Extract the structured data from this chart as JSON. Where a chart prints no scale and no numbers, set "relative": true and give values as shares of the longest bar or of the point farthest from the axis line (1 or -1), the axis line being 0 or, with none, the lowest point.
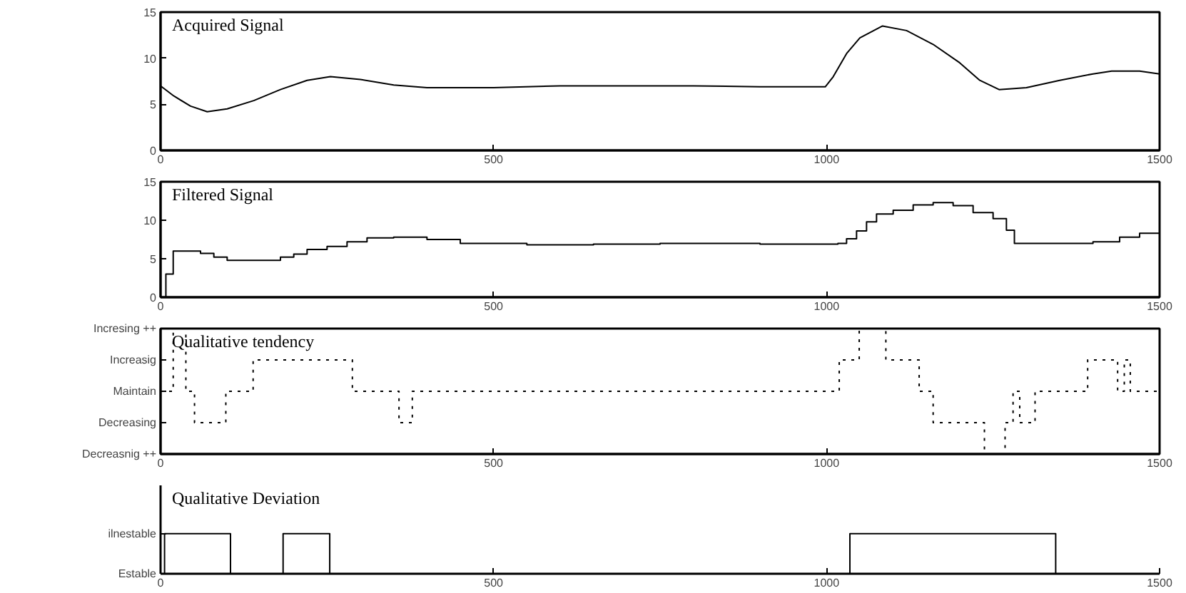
{
  "chart_data": [
    {
      "type": "line",
      "title": "Acquired Signal",
      "xlim": [
        0,
        1500
      ],
      "ylim": [
        0,
        15
      ],
      "xticks": [
        0,
        500,
        1000,
        1500
      ],
      "yticks": [
        0,
        5,
        10,
        15
      ],
      "grid": false,
      "series": [
        {
          "color": "#000000",
          "x": [
            0,
            20,
            45,
            70,
            100,
            140,
            180,
            220,
            255,
            300,
            350,
            400,
            500,
            600,
            700,
            800,
            900,
            998,
            1010,
            1030,
            1050,
            1084,
            1120,
            1160,
            1200,
            1230,
            1259,
            1300,
            1350,
            1400,
            1428,
            1470,
            1500
          ],
          "values": [
            7.0,
            5.9,
            4.8,
            4.2,
            4.5,
            5.4,
            6.6,
            7.6,
            8.0,
            7.7,
            7.1,
            6.8,
            6.8,
            7.0,
            7.0,
            7.0,
            6.9,
            6.9,
            8.0,
            10.5,
            12.2,
            13.5,
            13.0,
            11.5,
            9.5,
            7.6,
            6.6,
            6.8,
            7.6,
            8.3,
            8.6,
            8.6,
            8.3
          ]
        }
      ]
    },
    {
      "type": "step",
      "title": "Filtered Signal",
      "xlim": [
        0,
        1500
      ],
      "ylim": [
        0,
        15
      ],
      "xticks": [
        0,
        500,
        1000,
        1500
      ],
      "yticks": [
        0,
        5,
        10,
        15
      ],
      "grid": false,
      "series": [
        {
          "color": "#000000",
          "x": [
            0,
            8,
            19,
            40,
            60,
            80,
            100,
            150,
            180,
            200,
            220,
            250,
            280,
            310,
            350,
            400,
            450,
            550,
            650,
            750,
            900,
            1017,
            1030,
            1045,
            1060,
            1075,
            1100,
            1130,
            1160,
            1190,
            1220,
            1250,
            1270,
            1282,
            1320,
            1350,
            1400,
            1440,
            1470,
            1500
          ],
          "values": [
            0,
            3,
            6,
            6,
            5.7,
            5.2,
            4.8,
            4.8,
            5.2,
            5.6,
            6.2,
            6.6,
            7.2,
            7.7,
            7.8,
            7.5,
            7.0,
            6.8,
            6.9,
            7.0,
            6.9,
            7.0,
            7.6,
            8.6,
            9.8,
            10.8,
            11.3,
            12.0,
            12.3,
            11.9,
            11.0,
            10.2,
            8.7,
            7.0,
            7.0,
            7.0,
            7.2,
            7.8,
            8.3,
            8.5
          ]
        }
      ]
    },
    {
      "type": "step",
      "title": "Qualitative tendency",
      "xlim": [
        0,
        1500
      ],
      "xticks": [
        0,
        500,
        1000,
        1500
      ],
      "relative": true,
      "annotations": [
        "Incresing ++",
        "Increasig",
        "Maintain",
        "Decreasing",
        "Decreasnig ++"
      ],
      "grid": false,
      "line_style": "dotted",
      "series": [
        {
          "color": "#000000",
          "x": [
            0,
            19,
            38,
            51,
            98,
            139,
            288,
            358,
            378,
            1019,
            1049,
            1089,
            1139,
            1160,
            1237,
            1268,
            1280,
            1290,
            1313,
            1392,
            1437,
            1447,
            1456,
            1500
          ],
          "values": [
            0.5,
            1,
            0.5,
            0.25,
            0.5,
            0.75,
            0.5,
            0.25,
            0.5,
            0.75,
            1,
            0.75,
            0.5,
            0.25,
            0,
            0.25,
            0.5,
            0.25,
            0.5,
            0.75,
            0.5,
            0.75,
            0.5,
            0.5
          ]
        }
      ]
    },
    {
      "type": "step",
      "title": "Qualitative Deviation",
      "xlim": [
        0,
        1500
      ],
      "xticks": [
        0,
        500,
        1000,
        1500
      ],
      "relative": true,
      "annotations": [
        "ilnestable",
        "Estable"
      ],
      "grid": false,
      "series": [
        {
          "color": "#000000",
          "x": [
            0,
            6,
            105,
            184,
            254,
            1035,
            1344,
            1500
          ],
          "values": [
            0,
            1,
            0,
            1,
            0,
            1,
            0,
            0
          ]
        }
      ]
    }
  ]
}
